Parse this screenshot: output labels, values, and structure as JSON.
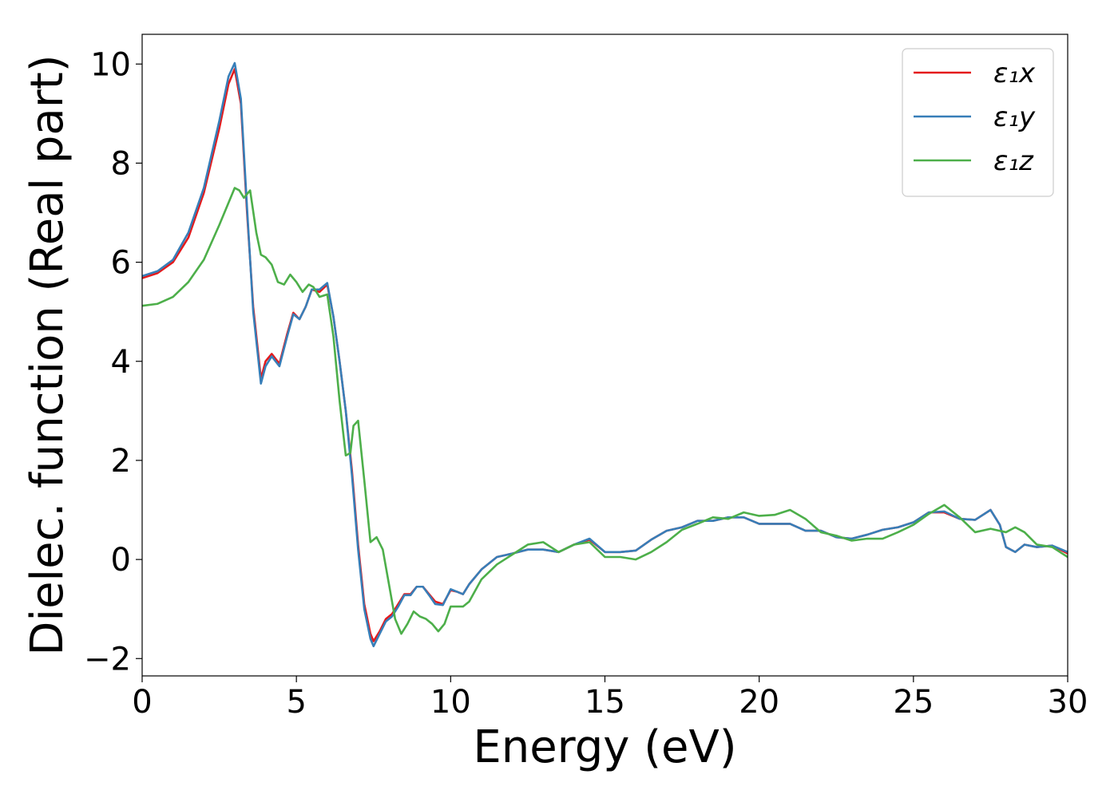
{
  "chart_data": {
    "type": "line",
    "xlabel": "Energy (eV)",
    "ylabel": "Dielec. function (Real part)",
    "xlim": [
      0,
      30
    ],
    "ylim": [
      -2.35,
      10.6
    ],
    "xticks": [
      0,
      5,
      10,
      15,
      20,
      25,
      30
    ],
    "xtick_labels": [
      "0",
      "5",
      "10",
      "15",
      "20",
      "25",
      "30"
    ],
    "yticks": [
      -2,
      0,
      2,
      4,
      6,
      8,
      10
    ],
    "ytick_labels": [
      "−2",
      "0",
      "2",
      "4",
      "6",
      "8",
      "10"
    ],
    "grid": false,
    "legend_position": "top-right",
    "series": [
      {
        "name": "ε₁x",
        "color": "#e41a1c",
        "x": [
          0,
          0.5,
          1.0,
          1.5,
          2.0,
          2.5,
          2.8,
          3.0,
          3.2,
          3.4,
          3.6,
          3.85,
          4.0,
          4.2,
          4.45,
          4.7,
          4.9,
          5.1,
          5.3,
          5.5,
          5.75,
          6.0,
          6.2,
          6.4,
          6.6,
          6.8,
          7.0,
          7.2,
          7.4,
          7.5,
          7.7,
          7.9,
          8.1,
          8.3,
          8.5,
          8.7,
          8.9,
          9.1,
          9.3,
          9.5,
          9.75,
          10.0,
          10.2,
          10.4,
          10.6,
          11.0,
          11.5,
          12.0,
          12.5,
          13.0,
          13.5,
          14.0,
          14.5,
          15.0,
          15.5,
          16.0,
          16.5,
          17.0,
          17.5,
          18.0,
          18.5,
          19.0,
          19.5,
          20.0,
          20.5,
          21.0,
          21.5,
          22.0,
          22.5,
          23.0,
          23.5,
          24.0,
          24.5,
          25.0,
          25.5,
          26.0,
          26.5,
          27.0,
          27.5,
          27.8,
          28.0,
          28.3,
          28.6,
          29.0,
          29.5,
          30.0
        ],
        "y": [
          5.68,
          5.78,
          6.0,
          6.5,
          7.4,
          8.7,
          9.6,
          9.9,
          9.2,
          7.0,
          5.1,
          3.65,
          4.0,
          4.15,
          3.95,
          4.55,
          4.98,
          4.85,
          5.1,
          5.45,
          5.4,
          5.55,
          4.9,
          4.0,
          3.0,
          1.8,
          0.3,
          -0.9,
          -1.5,
          -1.65,
          -1.45,
          -1.2,
          -1.1,
          -0.9,
          -0.7,
          -0.7,
          -0.55,
          -0.55,
          -0.7,
          -0.85,
          -0.9,
          -0.62,
          -0.65,
          -0.7,
          -0.5,
          -0.2,
          0.05,
          0.12,
          0.2,
          0.2,
          0.15,
          0.3,
          0.4,
          0.15,
          0.15,
          0.18,
          0.4,
          0.58,
          0.65,
          0.78,
          0.78,
          0.85,
          0.85,
          0.72,
          0.72,
          0.72,
          0.58,
          0.58,
          0.45,
          0.42,
          0.5,
          0.6,
          0.65,
          0.75,
          0.95,
          0.95,
          0.82,
          0.8,
          1.0,
          0.7,
          0.25,
          0.15,
          0.3,
          0.25,
          0.28,
          0.12
        ]
      },
      {
        "name": "ε₁y",
        "color": "#377eb8",
        "x": [
          0,
          0.5,
          1.0,
          1.5,
          2.0,
          2.5,
          2.8,
          3.0,
          3.2,
          3.4,
          3.6,
          3.85,
          4.0,
          4.2,
          4.45,
          4.7,
          4.9,
          5.1,
          5.3,
          5.5,
          5.75,
          6.0,
          6.2,
          6.4,
          6.6,
          6.8,
          7.0,
          7.2,
          7.4,
          7.5,
          7.7,
          7.9,
          8.1,
          8.3,
          8.5,
          8.7,
          8.9,
          9.1,
          9.3,
          9.5,
          9.75,
          10.0,
          10.2,
          10.4,
          10.6,
          11.0,
          11.5,
          12.0,
          12.5,
          13.0,
          13.5,
          14.0,
          14.5,
          15.0,
          15.5,
          16.0,
          16.5,
          17.0,
          17.5,
          18.0,
          18.5,
          19.0,
          19.5,
          20.0,
          20.5,
          21.0,
          21.5,
          22.0,
          22.5,
          23.0,
          23.5,
          24.0,
          24.5,
          25.0,
          25.5,
          26.0,
          26.5,
          27.0,
          27.5,
          27.8,
          28.0,
          28.3,
          28.6,
          29.0,
          29.5,
          30.0
        ],
        "y": [
          5.72,
          5.82,
          6.05,
          6.6,
          7.5,
          8.85,
          9.75,
          10.02,
          9.3,
          7.1,
          5.0,
          3.55,
          3.9,
          4.1,
          3.9,
          4.5,
          4.95,
          4.85,
          5.1,
          5.45,
          5.45,
          5.58,
          4.9,
          4.0,
          3.0,
          1.7,
          0.2,
          -1.0,
          -1.6,
          -1.75,
          -1.5,
          -1.25,
          -1.15,
          -0.95,
          -0.72,
          -0.72,
          -0.55,
          -0.55,
          -0.72,
          -0.9,
          -0.92,
          -0.6,
          -0.65,
          -0.7,
          -0.5,
          -0.2,
          0.05,
          0.12,
          0.2,
          0.2,
          0.15,
          0.3,
          0.42,
          0.15,
          0.15,
          0.18,
          0.4,
          0.58,
          0.65,
          0.78,
          0.78,
          0.85,
          0.85,
          0.72,
          0.72,
          0.72,
          0.58,
          0.58,
          0.45,
          0.42,
          0.5,
          0.6,
          0.65,
          0.75,
          0.95,
          0.97,
          0.82,
          0.8,
          1.0,
          0.7,
          0.25,
          0.15,
          0.3,
          0.25,
          0.28,
          0.15
        ]
      },
      {
        "name": "ε₁z",
        "color": "#4daf4a",
        "x": [
          0,
          0.5,
          1.0,
          1.5,
          2.0,
          2.5,
          2.8,
          3.0,
          3.15,
          3.3,
          3.5,
          3.7,
          3.85,
          4.0,
          4.2,
          4.4,
          4.6,
          4.8,
          5.0,
          5.2,
          5.4,
          5.55,
          5.75,
          6.0,
          6.2,
          6.4,
          6.6,
          6.75,
          6.85,
          7.0,
          7.2,
          7.4,
          7.6,
          7.8,
          8.0,
          8.2,
          8.4,
          8.6,
          8.8,
          9.0,
          9.2,
          9.4,
          9.6,
          9.8,
          10.0,
          10.2,
          10.4,
          10.6,
          11.0,
          11.5,
          12.0,
          12.5,
          13.0,
          13.5,
          14.0,
          14.5,
          15.0,
          15.5,
          16.0,
          16.5,
          17.0,
          17.5,
          18.0,
          18.5,
          19.0,
          19.5,
          20.0,
          20.5,
          21.0,
          21.5,
          22.0,
          22.5,
          23.0,
          23.5,
          24.0,
          24.5,
          25.0,
          25.5,
          26.0,
          26.5,
          27.0,
          27.5,
          28.0,
          28.3,
          28.6,
          29.0,
          29.5,
          30.0
        ],
        "y": [
          5.12,
          5.16,
          5.3,
          5.6,
          6.05,
          6.75,
          7.2,
          7.5,
          7.45,
          7.3,
          7.45,
          6.6,
          6.15,
          6.1,
          5.95,
          5.6,
          5.55,
          5.75,
          5.6,
          5.4,
          5.55,
          5.5,
          5.3,
          5.35,
          4.5,
          3.2,
          2.1,
          2.15,
          2.7,
          2.8,
          1.6,
          0.35,
          0.45,
          0.2,
          -0.5,
          -1.2,
          -1.5,
          -1.3,
          -1.05,
          -1.15,
          -1.2,
          -1.3,
          -1.45,
          -1.3,
          -0.95,
          -0.95,
          -0.95,
          -0.85,
          -0.4,
          -0.1,
          0.1,
          0.3,
          0.35,
          0.15,
          0.3,
          0.35,
          0.05,
          0.05,
          0.0,
          0.15,
          0.35,
          0.6,
          0.72,
          0.85,
          0.82,
          0.95,
          0.88,
          0.9,
          1.0,
          0.82,
          0.55,
          0.48,
          0.38,
          0.42,
          0.42,
          0.55,
          0.7,
          0.92,
          1.1,
          0.85,
          0.55,
          0.62,
          0.55,
          0.65,
          0.55,
          0.3,
          0.25,
          0.05
        ]
      }
    ]
  }
}
